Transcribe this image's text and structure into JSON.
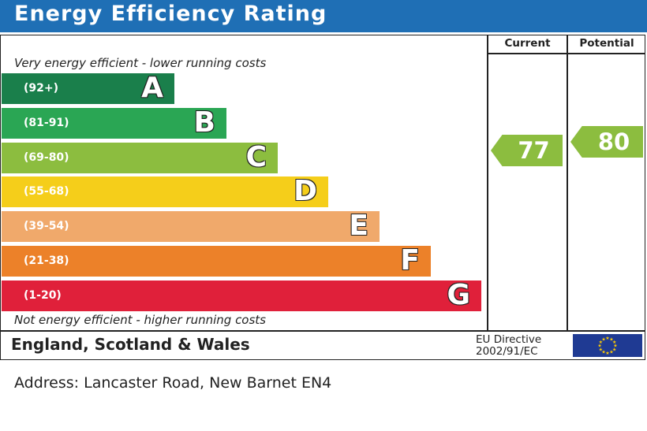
{
  "header": {
    "title": "Energy Efficiency Rating"
  },
  "columns": {
    "current": "Current",
    "potential": "Potential"
  },
  "notes": {
    "top": "Very energy efficient - lower running costs",
    "bottom": "Not energy efficient - higher running costs"
  },
  "footer": {
    "country": "England, Scotland & Wales",
    "directive_line1": "EU Directive",
    "directive_line2": "2002/91/EC",
    "flag_icon": "eu-flag-icon"
  },
  "address": "Address: Lancaster Road, New Barnet EN4",
  "chart_data": {
    "type": "bar",
    "categories": [
      "A",
      "B",
      "C",
      "D",
      "E",
      "F",
      "G"
    ],
    "bands": [
      {
        "letter": "A",
        "range": "(92+)",
        "color": "#1a7f4b"
      },
      {
        "letter": "B",
        "range": "(81-91)",
        "color": "#2aa654"
      },
      {
        "letter": "C",
        "range": "(69-80)",
        "color": "#8cbd3f"
      },
      {
        "letter": "D",
        "range": "(55-68)",
        "color": "#f5ce1a"
      },
      {
        "letter": "E",
        "range": "(39-54)",
        "color": "#f0a96b"
      },
      {
        "letter": "F",
        "range": "(21-38)",
        "color": "#ec8129"
      },
      {
        "letter": "G",
        "range": "(1-20)",
        "color": "#e0203a"
      }
    ],
    "current": {
      "value": 77,
      "band": "C",
      "color": "#8cbd3f"
    },
    "potential": {
      "value": 80,
      "band": "C",
      "color": "#8cbd3f"
    }
  }
}
